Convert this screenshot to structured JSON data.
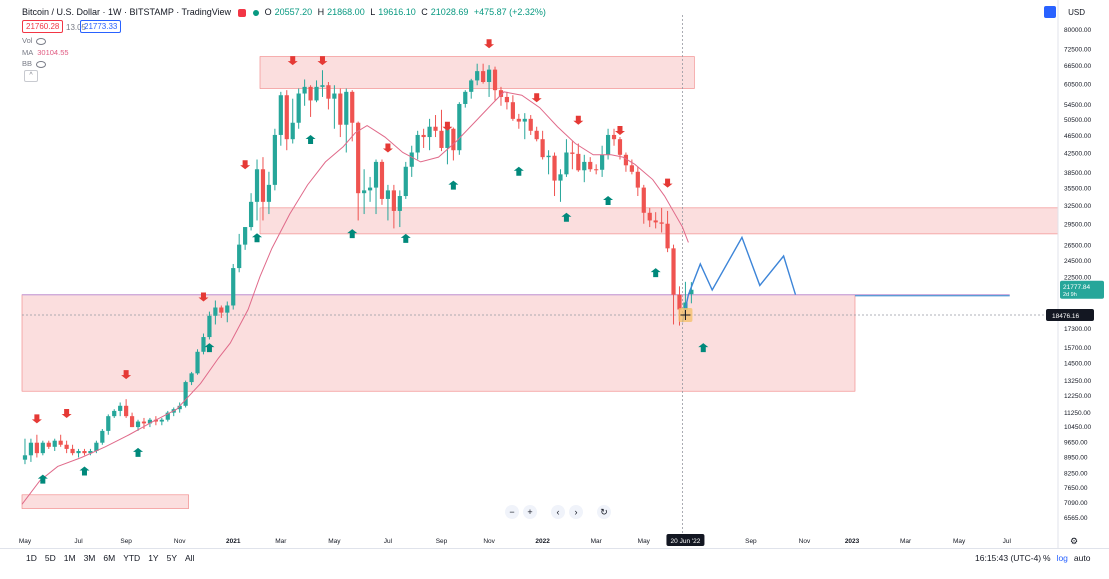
{
  "header": {
    "symbol": "Bitcoin / U.S. Dollar · 1W · BITSTAMP · TradingView",
    "o_label": "O",
    "o": "20557.20",
    "h_label": "H",
    "h": "21868.00",
    "l_label": "L",
    "l": "19616.10",
    "c_label": "C",
    "c": "21028.69",
    "change": "+475.87 (+2.32%)",
    "sell_price": "21760.28",
    "spread": "13.05",
    "buy_price": "21773.33"
  },
  "indicators": {
    "vol_label": "Vol",
    "ma_label": "MA",
    "ma_value": "30104.55",
    "bb_label": "BB",
    "collapse_icon": "chevron-up-icon"
  },
  "currency": "USD",
  "bottom_bar": {
    "ranges": [
      "1D",
      "5D",
      "1M",
      "3M",
      "6M",
      "YTD",
      "1Y",
      "5Y",
      "All"
    ],
    "clock": "16:15:43 (UTC-4)",
    "percent": "%",
    "log": "log",
    "auto": "auto"
  },
  "toolbar": {
    "minus": "−",
    "plus": "+",
    "left": "‹",
    "right": "›",
    "reset": "↻"
  },
  "chart_data": {
    "type": "candlestick",
    "y_scale": "log",
    "ylim": [
      6200,
      86000
    ],
    "y_ticks": [
      "80000.00",
      "72500.00",
      "66500.00",
      "60500.00",
      "54500.00",
      "50500.00",
      "46500.00",
      "42500.00",
      "38500.00",
      "35500.00",
      "32500.00",
      "29500.00",
      "26500.00",
      "24500.00",
      "22500.00",
      "20500.00",
      "17300.00",
      "15700.00",
      "14500.00",
      "13250.00",
      "12250.00",
      "11250.00",
      "10450.00",
      "9650.00",
      "8950.00",
      "8250.00",
      "7650.00",
      "7090.00",
      "6565.00"
    ],
    "x_ticks": [
      "May",
      "Jul",
      "Sep",
      "Nov",
      "2021",
      "Mar",
      "May",
      "Jul",
      "Sep",
      "Nov",
      "2022",
      "Mar",
      "May",
      "Sep",
      "Nov",
      "2023",
      "Mar",
      "May",
      "Jul",
      "Sep"
    ],
    "x_tick_weeks": [
      0,
      9,
      17,
      26,
      35,
      43,
      52,
      61,
      70,
      78,
      87,
      96,
      104,
      122,
      131,
      139,
      148,
      157,
      165,
      174
    ],
    "cursor_date": "20 Jun '22",
    "cursor_week": 111,
    "last_price": "21777.84",
    "last_countdown": "2d 9h",
    "crosshair_price": "18476.16",
    "crosshair_value": 18476.16,
    "weeks_count": 113,
    "candles": [
      [
        8800,
        9800,
        8600,
        9000
      ],
      [
        9000,
        9800,
        8700,
        9600
      ],
      [
        9600,
        10000,
        8900,
        9100
      ],
      [
        9100,
        9700,
        9000,
        9600
      ],
      [
        9600,
        9700,
        9300,
        9400
      ],
      [
        9400,
        9800,
        9200,
        9700
      ],
      [
        9700,
        10000,
        9400,
        9500
      ],
      [
        9500,
        9700,
        9100,
        9300
      ],
      [
        9300,
        9500,
        9000,
        9100
      ],
      [
        9100,
        9300,
        8900,
        9200
      ],
      [
        9200,
        9300,
        9000,
        9100
      ],
      [
        9100,
        9300,
        9000,
        9200
      ],
      [
        9200,
        9700,
        9100,
        9600
      ],
      [
        9600,
        10300,
        9500,
        10200
      ],
      [
        10200,
        11100,
        10000,
        11000
      ],
      [
        11000,
        11400,
        10900,
        11300
      ],
      [
        11300,
        11800,
        11000,
        11600
      ],
      [
        11600,
        12000,
        10900,
        11000
      ],
      [
        11000,
        11200,
        10400,
        10400
      ],
      [
        10400,
        10800,
        10200,
        10700
      ],
      [
        10700,
        10900,
        10300,
        10600
      ],
      [
        10600,
        10900,
        10400,
        10800
      ],
      [
        10800,
        11000,
        10500,
        10700
      ],
      [
        10700,
        10900,
        10500,
        10800
      ],
      [
        10800,
        11300,
        10700,
        11200
      ],
      [
        11200,
        11500,
        11000,
        11400
      ],
      [
        11400,
        11800,
        11200,
        11600
      ],
      [
        11600,
        13200,
        11500,
        13100
      ],
      [
        13100,
        13800,
        12900,
        13700
      ],
      [
        13700,
        15500,
        13600,
        15300
      ],
      [
        15300,
        16800,
        15100,
        16500
      ],
      [
        16500,
        18800,
        16300,
        18400
      ],
      [
        18400,
        19900,
        17600,
        19200
      ],
      [
        19200,
        19400,
        18200,
        18700
      ],
      [
        18700,
        19800,
        17800,
        19400
      ],
      [
        19400,
        24000,
        19000,
        23500
      ],
      [
        23500,
        28000,
        23000,
        26500
      ],
      [
        26500,
        29000,
        25800,
        29000
      ],
      [
        29000,
        34500,
        28500,
        33000
      ],
      [
        33000,
        41000,
        30000,
        39000
      ],
      [
        39000,
        41500,
        30000,
        33000
      ],
      [
        33000,
        38500,
        31000,
        36000
      ],
      [
        36000,
        48000,
        35000,
        46500
      ],
      [
        46500,
        58000,
        44000,
        57000
      ],
      [
        57000,
        58500,
        43000,
        45500
      ],
      [
        45500,
        56000,
        44500,
        49500
      ],
      [
        49500,
        59000,
        48000,
        57500
      ],
      [
        57500,
        61800,
        54000,
        59500
      ],
      [
        59500,
        60000,
        51000,
        55500
      ],
      [
        55500,
        61500,
        55000,
        59500
      ],
      [
        59500,
        64800,
        56500,
        60000
      ],
      [
        60000,
        61000,
        53000,
        56000
      ],
      [
        56000,
        60000,
        48000,
        57500
      ],
      [
        57500,
        59000,
        46000,
        49000
      ],
      [
        49000,
        59000,
        42500,
        58000
      ],
      [
        58000,
        58500,
        45000,
        49500
      ],
      [
        49500,
        49800,
        30000,
        34500
      ],
      [
        34500,
        39000,
        31000,
        35000
      ],
      [
        35000,
        37500,
        33000,
        35500
      ],
      [
        35500,
        41000,
        31000,
        40500
      ],
      [
        40500,
        41000,
        32500,
        33500
      ],
      [
        33500,
        36000,
        30000,
        35000
      ],
      [
        35000,
        36000,
        28800,
        31500
      ],
      [
        31500,
        35000,
        29000,
        34000
      ],
      [
        34000,
        40500,
        33500,
        39500
      ],
      [
        39500,
        44000,
        37500,
        42500
      ],
      [
        42500,
        47500,
        41000,
        46500
      ],
      [
        46500,
        48000,
        43500,
        46000
      ],
      [
        46000,
        50500,
        43000,
        48500
      ],
      [
        48500,
        51500,
        46000,
        47500
      ],
      [
        47500,
        52900,
        42800,
        43500
      ],
      [
        43500,
        48500,
        40000,
        48000
      ],
      [
        48000,
        48300,
        40800,
        43000
      ],
      [
        43000,
        55000,
        42000,
        54500
      ],
      [
        54500,
        58500,
        53500,
        58000
      ],
      [
        58000,
        62000,
        56000,
        61500
      ],
      [
        61500,
        67000,
        60000,
        64500
      ],
      [
        64500,
        67000,
        60500,
        61000
      ],
      [
        61000,
        66500,
        56500,
        65000
      ],
      [
        65000,
        66000,
        55500,
        58500
      ],
      [
        58500,
        59500,
        54000,
        56500
      ],
      [
        56500,
        58000,
        53000,
        55000
      ],
      [
        55000,
        57000,
        50000,
        50500
      ],
      [
        50500,
        51800,
        48000,
        49800
      ],
      [
        49800,
        52000,
        45500,
        50500
      ],
      [
        50500,
        51500,
        46500,
        47500
      ],
      [
        47500,
        48500,
        45000,
        45500
      ],
      [
        45500,
        47500,
        41000,
        41500
      ],
      [
        41500,
        43000,
        38000,
        41800
      ],
      [
        41800,
        42500,
        34000,
        36800
      ],
      [
        36800,
        39000,
        33000,
        38000
      ],
      [
        38000,
        45500,
        37500,
        42500
      ],
      [
        42500,
        45000,
        39000,
        42200
      ],
      [
        42200,
        44500,
        38500,
        38800
      ],
      [
        38800,
        42000,
        36500,
        40500
      ],
      [
        40500,
        41500,
        38500,
        39000
      ],
      [
        39000,
        40000,
        38000,
        38900
      ],
      [
        38900,
        44000,
        37500,
        42000
      ],
      [
        42000,
        48000,
        41000,
        46500
      ],
      [
        46500,
        48000,
        44000,
        45500
      ],
      [
        45500,
        46000,
        41000,
        42000
      ],
      [
        42000,
        42500,
        38500,
        39800
      ],
      [
        39800,
        41000,
        38000,
        38500
      ],
      [
        38500,
        39500,
        34000,
        35500
      ],
      [
        35500,
        36000,
        29500,
        31200
      ],
      [
        31200,
        32000,
        29000,
        30000
      ],
      [
        30000,
        31300,
        28800,
        29700
      ],
      [
        29700,
        32000,
        28200,
        29500
      ],
      [
        29500,
        31500,
        25500,
        26000
      ],
      [
        26000,
        26500,
        17600,
        20500
      ],
      [
        20500,
        21400,
        17500,
        19000
      ],
      [
        19000,
        21900,
        19000,
        19700
      ],
      [
        20557,
        21868,
        19616,
        21028
      ]
    ],
    "ma": [
      [
        0,
        7000
      ],
      [
        3,
        7900
      ],
      [
        6,
        8500
      ],
      [
        10,
        8900
      ],
      [
        14,
        9400
      ],
      [
        18,
        10000
      ],
      [
        22,
        10700
      ],
      [
        26,
        11400
      ],
      [
        30,
        13000
      ],
      [
        33,
        14800
      ],
      [
        35,
        16000
      ],
      [
        38,
        19000
      ],
      [
        40,
        22500
      ],
      [
        42,
        26000
      ],
      [
        45,
        31000
      ],
      [
        48,
        36000
      ],
      [
        51,
        40500
      ],
      [
        54,
        43800
      ],
      [
        56,
        47000
      ],
      [
        58,
        48800
      ],
      [
        61,
        46000
      ],
      [
        64,
        42500
      ],
      [
        67,
        40500
      ],
      [
        70,
        41500
      ],
      [
        73,
        45000
      ],
      [
        76,
        49500
      ],
      [
        79,
        54500
      ],
      [
        81,
        58000
      ],
      [
        84,
        57000
      ],
      [
        87,
        53500
      ],
      [
        90,
        48500
      ],
      [
        93,
        44500
      ],
      [
        96,
        42000
      ],
      [
        99,
        42000
      ],
      [
        101,
        41500
      ],
      [
        103,
        40000
      ],
      [
        106,
        37000
      ],
      [
        108,
        34000
      ],
      [
        111,
        29000
      ],
      [
        112,
        26800
      ]
    ],
    "zones": [
      {
        "w0": 40,
        "w1": 113,
        "lo": 59000,
        "hi": 69500,
        "color": "#f8c8c8"
      },
      {
        "w0": 40,
        "w1": 180,
        "lo": 28000,
        "hi": 32000,
        "color": "#f8c8c8"
      },
      {
        "w0": 0,
        "w1": 140,
        "lo": 12500,
        "hi": 20500,
        "color": "#f8c8c8"
      },
      {
        "w0": 0,
        "w1": 28,
        "lo": 6850,
        "hi": 7350,
        "color": "#f8c8c8"
      }
    ],
    "support_line": {
      "w0": 0,
      "w1": 166,
      "y": 20500,
      "color": "#c9a3d9"
    },
    "target_line": {
      "w0": 140,
      "w1": 166,
      "y": 20500,
      "color": "#5b9bd5"
    },
    "projection": [
      [
        111,
        17800
      ],
      [
        112,
        20500
      ],
      [
        114,
        24000
      ],
      [
        116,
        21000
      ],
      [
        121,
        27500
      ],
      [
        124,
        21500
      ],
      [
        128,
        25000
      ],
      [
        130,
        20500
      ]
    ],
    "arrows_down": [
      [
        2,
        10600
      ],
      [
        7,
        10900
      ],
      [
        17,
        13300
      ],
      [
        30,
        19800
      ],
      [
        37,
        39000
      ],
      [
        45,
        66500
      ],
      [
        50,
        66500
      ],
      [
        61,
        42500
      ],
      [
        71,
        47500
      ],
      [
        78,
        72500
      ],
      [
        86,
        55000
      ],
      [
        93,
        49000
      ],
      [
        100,
        46500
      ],
      [
        108,
        35500
      ]
    ],
    "arrows_up": [
      [
        3,
        8150
      ],
      [
        10,
        8500
      ],
      [
        19,
        9350
      ],
      [
        31,
        16000
      ],
      [
        39,
        28100
      ],
      [
        48,
        46500
      ],
      [
        55,
        28700
      ],
      [
        64,
        28000
      ],
      [
        72,
        36800
      ],
      [
        83,
        39500
      ],
      [
        91,
        31200
      ],
      [
        98,
        34000
      ],
      [
        106,
        23500
      ],
      [
        114,
        16000
      ]
    ]
  }
}
